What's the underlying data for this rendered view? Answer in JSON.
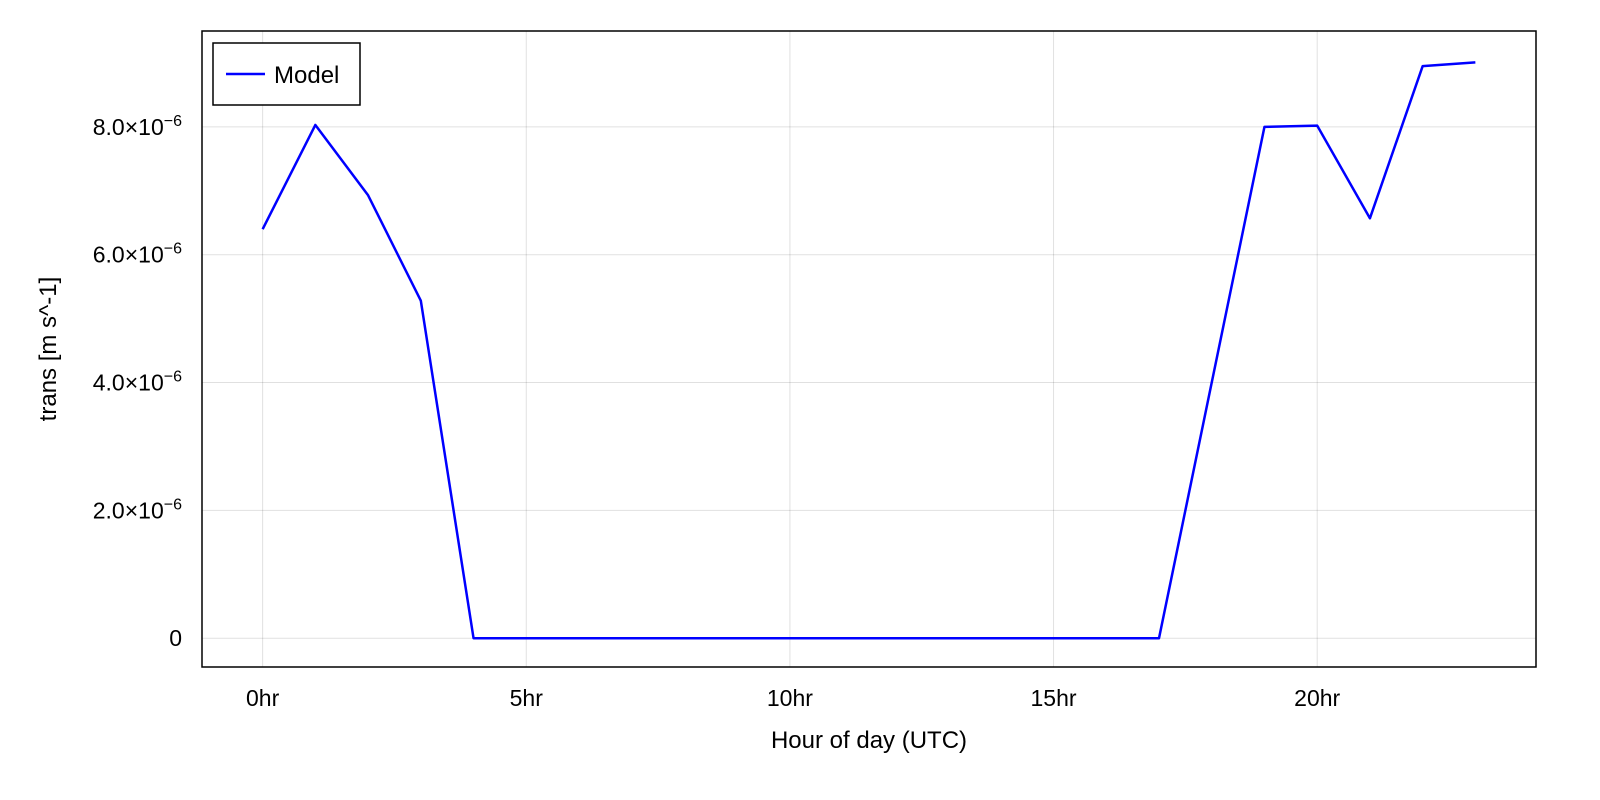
{
  "chart_data": {
    "type": "line",
    "title": "",
    "xlabel": "Hour of day (UTC)",
    "ylabel": "trans [m s^-1]",
    "xlim": [
      -1.15,
      24.15
    ],
    "ylim": [
      -4.5e-07,
      9.5e-06
    ],
    "x_ticks": [
      {
        "value": 0,
        "label": "0hr"
      },
      {
        "value": 5,
        "label": "5hr"
      },
      {
        "value": 10,
        "label": "10hr"
      },
      {
        "value": 15,
        "label": "15hr"
      },
      {
        "value": 20,
        "label": "20hr"
      }
    ],
    "y_ticks": [
      {
        "value": 0,
        "mantissa": "0",
        "exponent": ""
      },
      {
        "value": 2e-06,
        "mantissa": "2.0×10",
        "exponent": "−6"
      },
      {
        "value": 4e-06,
        "mantissa": "4.0×10",
        "exponent": "−6"
      },
      {
        "value": 6e-06,
        "mantissa": "6.0×10",
        "exponent": "−6"
      },
      {
        "value": 8e-06,
        "mantissa": "8.0×10",
        "exponent": "−6"
      }
    ],
    "grid": true,
    "legend_position": "top-left",
    "series": [
      {
        "name": "Model",
        "color": "#0000ff",
        "x": [
          0,
          1,
          2,
          3,
          4,
          5,
          6,
          7,
          8,
          9,
          10,
          11,
          12,
          13,
          14,
          15,
          16,
          17,
          18,
          19,
          20,
          21,
          22,
          23
        ],
        "y": [
          6.4e-06,
          8.03e-06,
          6.93e-06,
          5.28e-06,
          0,
          0,
          0,
          0,
          0,
          0,
          0,
          0,
          0,
          0,
          0,
          0,
          0,
          0,
          4e-06,
          8e-06,
          8.02e-06,
          6.57e-06,
          8.95e-06,
          9.01e-06
        ]
      }
    ]
  }
}
